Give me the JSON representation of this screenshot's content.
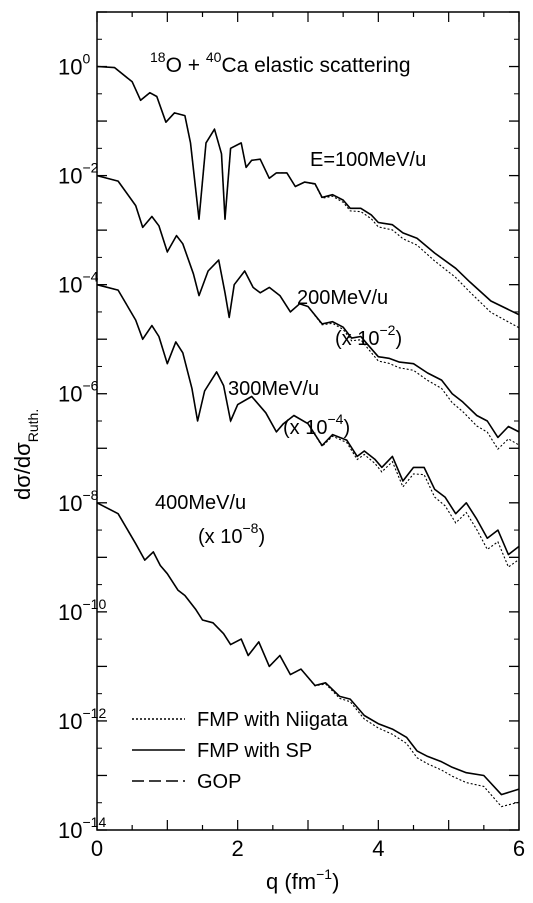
{
  "chart_data": {
    "type": "line",
    "title_parts": {
      "a1": "18",
      "b1": "O + ",
      "a2": "40",
      "b2": "Ca elastic scattering"
    },
    "xlabel": {
      "base": "q (fm",
      "sup": "−1",
      "tail": ")"
    },
    "ylabel": {
      "main": "dσ/dσ",
      "sub": "Ruth."
    },
    "xlim": [
      0,
      6
    ],
    "ylog": true,
    "ylim": [
      1e-14,
      10
    ],
    "x_ticks": [
      {
        "v": 0,
        "label": "0"
      },
      {
        "v": 2,
        "label": "2"
      },
      {
        "v": 4,
        "label": "4"
      },
      {
        "v": 6,
        "label": "6"
      }
    ],
    "y_ticks": [
      {
        "exp": 0,
        "base": "10",
        "sup": "0"
      },
      {
        "exp": -2,
        "base": "10",
        "sup": "−2"
      },
      {
        "exp": -4,
        "base": "10",
        "sup": "−4"
      },
      {
        "exp": -6,
        "base": "10",
        "sup": "−6"
      },
      {
        "exp": -8,
        "base": "10",
        "sup": "−8"
      },
      {
        "exp": -10,
        "base": "10",
        "sup": "−10"
      },
      {
        "exp": -12,
        "base": "10",
        "sup": "−12"
      },
      {
        "exp": -14,
        "base": "10",
        "sup": "−14"
      }
    ],
    "annotations": [
      {
        "id": "e100",
        "text": "E=100MeV/u"
      },
      {
        "id": "e200",
        "text": "200MeV/u"
      },
      {
        "id": "s200",
        "base": "(x 10",
        "sup": "−2",
        "tail": ")"
      },
      {
        "id": "e300",
        "text": "300MeV/u"
      },
      {
        "id": "s300",
        "base": "(x 10",
        "sup": "−4",
        "tail": ")"
      },
      {
        "id": "e400",
        "text": "400MeV/u"
      },
      {
        "id": "s400",
        "base": "(x 10",
        "sup": "−8",
        "tail": ")"
      }
    ],
    "legend": {
      "position": "bottom-left",
      "entries": [
        {
          "label": "FMP with Niigata",
          "style": "dotted"
        },
        {
          "label": "FMP with SP",
          "style": "solid"
        },
        {
          "label": "GOP",
          "style": "dashed"
        }
      ]
    },
    "series": [
      {
        "energy": "E=100MeV/u",
        "points": [
          [
            0,
            0
          ],
          [
            0.25,
            -0.02
          ],
          [
            0.5,
            -0.28
          ],
          [
            0.62,
            -0.62
          ],
          [
            0.75,
            -0.48
          ],
          [
            0.85,
            -0.55
          ],
          [
            0.98,
            -1.02
          ],
          [
            1.1,
            -0.85
          ],
          [
            1.25,
            -0.9
          ],
          [
            1.33,
            -1.4
          ],
          [
            1.45,
            -2.8
          ],
          [
            1.55,
            -1.4
          ],
          [
            1.67,
            -1.15
          ],
          [
            1.77,
            -1.6
          ],
          [
            1.82,
            -2.8
          ],
          [
            1.9,
            -1.5
          ],
          [
            2.05,
            -1.4
          ],
          [
            2.12,
            -1.85
          ],
          [
            2.2,
            -1.72
          ],
          [
            2.32,
            -1.7
          ],
          [
            2.45,
            -2.05
          ],
          [
            2.55,
            -1.95
          ],
          [
            2.7,
            -1.95
          ],
          [
            2.82,
            -2.2
          ],
          [
            2.95,
            -2.12
          ],
          [
            3.1,
            -2.15
          ],
          [
            3.2,
            -2.4
          ],
          [
            3.35,
            -2.35
          ],
          [
            3.5,
            -2.45
          ],
          [
            3.6,
            -2.6
          ],
          [
            3.75,
            -2.6
          ],
          [
            3.9,
            -2.72
          ],
          [
            4.0,
            -2.86
          ],
          [
            4.2,
            -2.9
          ],
          [
            4.35,
            -3.05
          ],
          [
            4.55,
            -3.15
          ],
          [
            4.8,
            -3.42
          ],
          [
            5.1,
            -3.7
          ],
          [
            5.3,
            -3.95
          ],
          [
            5.6,
            -4.3
          ],
          [
            6.0,
            -4.55
          ]
        ]
      },
      {
        "energy": "200MeV/u",
        "points": [
          [
            0,
            -2
          ],
          [
            0.3,
            -2.1
          ],
          [
            0.55,
            -2.55
          ],
          [
            0.65,
            -2.95
          ],
          [
            0.78,
            -2.75
          ],
          [
            0.88,
            -2.92
          ],
          [
            1.0,
            -3.4
          ],
          [
            1.13,
            -3.1
          ],
          [
            1.22,
            -3.25
          ],
          [
            1.37,
            -3.8
          ],
          [
            1.45,
            -4.2
          ],
          [
            1.58,
            -3.75
          ],
          [
            1.73,
            -3.55
          ],
          [
            1.82,
            -4.15
          ],
          [
            1.88,
            -4.6
          ],
          [
            1.95,
            -4.0
          ],
          [
            2.1,
            -3.75
          ],
          [
            2.22,
            -4.05
          ],
          [
            2.32,
            -4.15
          ],
          [
            2.45,
            -4.05
          ],
          [
            2.6,
            -4.2
          ],
          [
            2.75,
            -4.5
          ],
          [
            2.88,
            -4.35
          ],
          [
            3.0,
            -4.4
          ],
          [
            3.2,
            -4.72
          ],
          [
            3.35,
            -4.68
          ],
          [
            3.5,
            -4.78
          ],
          [
            3.62,
            -4.98
          ],
          [
            3.75,
            -4.95
          ],
          [
            3.85,
            -5.1
          ],
          [
            4.0,
            -5.32
          ],
          [
            4.15,
            -5.35
          ],
          [
            4.3,
            -5.42
          ],
          [
            4.5,
            -5.45
          ],
          [
            4.7,
            -5.62
          ],
          [
            4.9,
            -5.75
          ],
          [
            5.05,
            -6.0
          ],
          [
            5.2,
            -6.15
          ],
          [
            5.4,
            -6.4
          ],
          [
            5.55,
            -6.5
          ],
          [
            5.7,
            -6.8
          ],
          [
            5.85,
            -6.6
          ],
          [
            6.0,
            -6.7
          ]
        ]
      },
      {
        "energy": "300MeV/u",
        "points": [
          [
            0,
            -4
          ],
          [
            0.3,
            -4.1
          ],
          [
            0.55,
            -4.65
          ],
          [
            0.65,
            -5.0
          ],
          [
            0.78,
            -4.75
          ],
          [
            0.88,
            -4.95
          ],
          [
            1.0,
            -5.45
          ],
          [
            1.12,
            -5.05
          ],
          [
            1.22,
            -5.25
          ],
          [
            1.35,
            -5.9
          ],
          [
            1.43,
            -6.5
          ],
          [
            1.53,
            -5.95
          ],
          [
            1.7,
            -5.6
          ],
          [
            1.8,
            -5.85
          ],
          [
            1.9,
            -6.5
          ],
          [
            2.0,
            -6.2
          ],
          [
            2.2,
            -6.05
          ],
          [
            2.4,
            -6.35
          ],
          [
            2.55,
            -6.7
          ],
          [
            2.65,
            -6.55
          ],
          [
            2.8,
            -6.4
          ],
          [
            3.0,
            -6.55
          ],
          [
            3.2,
            -6.95
          ],
          [
            3.35,
            -6.75
          ],
          [
            3.55,
            -6.85
          ],
          [
            3.7,
            -7.15
          ],
          [
            3.8,
            -7.05
          ],
          [
            3.95,
            -7.2
          ],
          [
            4.05,
            -7.35
          ],
          [
            4.2,
            -7.15
          ],
          [
            4.35,
            -7.6
          ],
          [
            4.5,
            -7.35
          ],
          [
            4.65,
            -7.35
          ],
          [
            4.8,
            -7.75
          ],
          [
            4.95,
            -7.9
          ],
          [
            5.1,
            -8.2
          ],
          [
            5.25,
            -8.0
          ],
          [
            5.4,
            -8.3
          ],
          [
            5.55,
            -8.65
          ],
          [
            5.7,
            -8.5
          ],
          [
            5.85,
            -8.95
          ],
          [
            6.0,
            -8.8
          ]
        ]
      },
      {
        "energy": "400MeV/u",
        "points": [
          [
            0,
            -8
          ],
          [
            0.3,
            -8.2
          ],
          [
            0.55,
            -8.75
          ],
          [
            0.68,
            -9.05
          ],
          [
            0.8,
            -8.9
          ],
          [
            0.9,
            -9.15
          ],
          [
            1.0,
            -9.3
          ],
          [
            1.15,
            -9.6
          ],
          [
            1.25,
            -9.7
          ],
          [
            1.4,
            -9.95
          ],
          [
            1.5,
            -10.15
          ],
          [
            1.65,
            -10.2
          ],
          [
            1.8,
            -10.4
          ],
          [
            1.9,
            -10.6
          ],
          [
            2.05,
            -10.5
          ],
          [
            2.15,
            -10.8
          ],
          [
            2.3,
            -10.55
          ],
          [
            2.45,
            -11.0
          ],
          [
            2.6,
            -10.8
          ],
          [
            2.75,
            -11.15
          ],
          [
            2.9,
            -11.05
          ],
          [
            3.1,
            -11.35
          ],
          [
            3.25,
            -11.3
          ],
          [
            3.45,
            -11.55
          ],
          [
            3.6,
            -11.6
          ],
          [
            3.8,
            -11.9
          ],
          [
            4.0,
            -12.05
          ],
          [
            4.2,
            -12.15
          ],
          [
            4.4,
            -12.3
          ],
          [
            4.55,
            -12.55
          ],
          [
            4.7,
            -12.65
          ],
          [
            4.9,
            -12.75
          ],
          [
            5.05,
            -12.85
          ],
          [
            5.25,
            -12.95
          ],
          [
            5.5,
            -13.0
          ],
          [
            5.75,
            -13.35
          ],
          [
            6.0,
            -13.25
          ]
        ]
      }
    ]
  }
}
